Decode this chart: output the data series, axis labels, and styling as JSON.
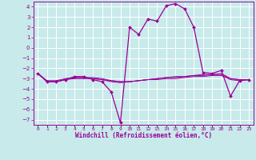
{
  "xlabel": "Windchill (Refroidissement éolien,°C)",
  "background_color": "#c8eaea",
  "grid_color": "#b0d8d8",
  "line_color": "#990099",
  "x_hours": [
    0,
    1,
    2,
    3,
    4,
    5,
    6,
    7,
    8,
    9,
    10,
    11,
    12,
    13,
    14,
    15,
    16,
    17,
    18,
    19,
    20,
    21,
    22,
    23
  ],
  "temp_main": [
    -2.5,
    -3.3,
    -3.3,
    -3.1,
    -2.8,
    -2.8,
    -3.1,
    -3.3,
    -4.3,
    -7.3,
    2.0,
    1.3,
    2.8,
    2.6,
    4.1,
    4.3,
    3.8,
    2.0,
    -2.4,
    -2.5,
    -2.2,
    -4.7,
    -3.2,
    -3.1
  ],
  "temp_line2": [
    -2.5,
    -3.2,
    -3.2,
    -3.0,
    -2.9,
    -2.9,
    -2.9,
    -3.0,
    -3.2,
    -3.3,
    -3.3,
    -3.2,
    -3.1,
    -3.0,
    -2.9,
    -2.9,
    -2.8,
    -2.7,
    -2.7,
    -2.6,
    -2.6,
    -3.0,
    -3.1,
    -3.1
  ],
  "temp_line3": [
    -2.5,
    -3.3,
    -3.3,
    -3.1,
    -3.0,
    -3.0,
    -3.0,
    -3.1,
    -3.2,
    -3.3,
    -3.3,
    -3.2,
    -3.1,
    -3.1,
    -3.0,
    -3.0,
    -2.9,
    -2.8,
    -2.8,
    -2.7,
    -2.7,
    -3.1,
    -3.2,
    -3.1
  ],
  "temp_line4": [
    -2.5,
    -3.3,
    -3.3,
    -3.1,
    -2.9,
    -2.9,
    -3.0,
    -3.1,
    -3.3,
    -3.4,
    -3.3,
    -3.2,
    -3.1,
    -3.0,
    -2.9,
    -2.8,
    -2.8,
    -2.7,
    -2.6,
    -2.6,
    -2.5,
    -3.0,
    -3.1,
    -3.1
  ],
  "ylim": [
    -7.5,
    4.5
  ],
  "yticks": [
    -7,
    -6,
    -5,
    -4,
    -3,
    -2,
    -1,
    0,
    1,
    2,
    3,
    4
  ],
  "xlim": [
    -0.5,
    23.5
  ],
  "tick_color": "#990099",
  "spine_color": "#990099",
  "xlabel_color": "#990099",
  "grid_white": "#ffffff"
}
